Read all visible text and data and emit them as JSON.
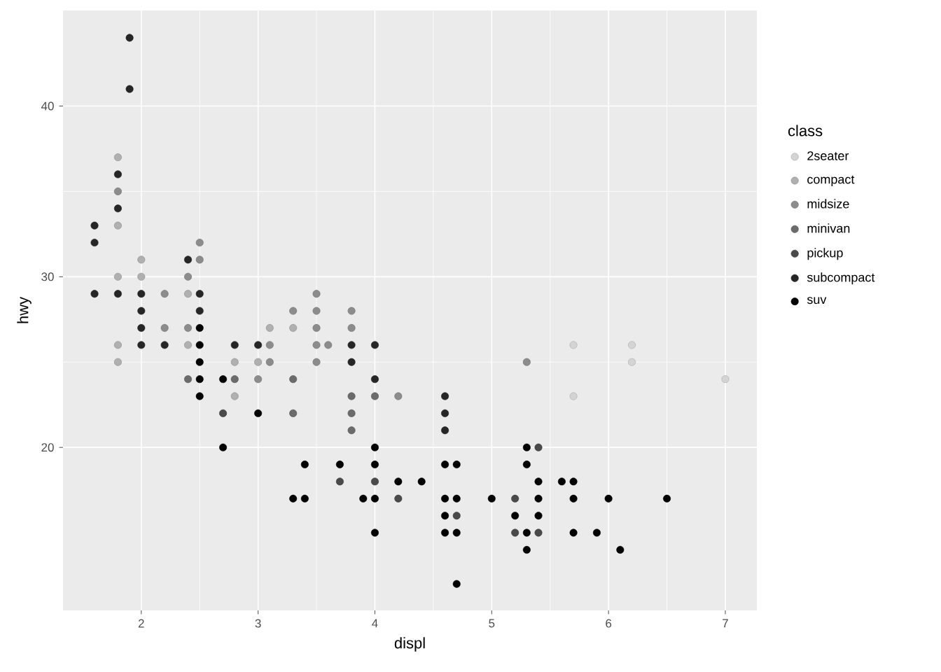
{
  "chart_data": {
    "type": "scatter",
    "xlabel": "displ",
    "ylabel": "hwy",
    "legend_title": "class",
    "xlim": [
      1.33,
      7.27
    ],
    "ylim": [
      10.45,
      45.6
    ],
    "xticks": [
      2,
      3,
      4,
      5,
      6,
      7
    ],
    "yticks": [
      20,
      30,
      40
    ],
    "grid": true,
    "legend": "right",
    "marker": "circle",
    "series": [
      {
        "name": "2seater",
        "color": "#d4d4d4",
        "x": [
          5.7,
          5.7,
          6.2,
          6.2,
          7.0
        ],
        "values": [
          26,
          23,
          26,
          25,
          24
        ]
      },
      {
        "name": "compact",
        "color": "#b0b0b0",
        "x": [
          1.8,
          1.8,
          1.8,
          1.8,
          1.8,
          2.0,
          2.0,
          2.4,
          2.4,
          2.8,
          2.8,
          3.0,
          3.1,
          3.3
        ],
        "values": [
          37,
          33,
          30,
          26,
          25,
          31,
          30,
          29,
          26,
          25,
          23,
          25,
          27,
          27
        ]
      },
      {
        "name": "midsize",
        "color": "#8c8c8c",
        "x": [
          1.8,
          2.2,
          2.2,
          2.4,
          2.4,
          2.5,
          2.5,
          3.0,
          3.1,
          3.1,
          3.3,
          3.5,
          3.5,
          3.5,
          3.5,
          3.5,
          3.6,
          3.8,
          3.8,
          4.2,
          5.3
        ],
        "values": [
          35,
          29,
          27,
          30,
          27,
          32,
          31,
          24,
          26,
          25,
          28,
          29,
          28,
          27,
          26,
          25,
          26,
          28,
          27,
          23,
          25
        ]
      },
      {
        "name": "minivan",
        "color": "#6b6b6b",
        "x": [
          2.4,
          2.8,
          3.3,
          3.3,
          3.8,
          3.8,
          3.8,
          4.0
        ],
        "values": [
          24,
          24,
          24,
          22,
          23,
          22,
          21,
          23
        ]
      },
      {
        "name": "pickup",
        "color": "#4a4a4a",
        "x": [
          2.7,
          3.7,
          4.0,
          4.2,
          4.7,
          5.2,
          5.2,
          5.4,
          5.4
        ],
        "values": [
          22,
          18,
          18,
          17,
          16,
          17,
          15,
          20,
          15
        ]
      },
      {
        "name": "subcompact",
        "color": "#262626",
        "x": [
          1.6,
          1.6,
          1.6,
          1.8,
          1.8,
          1.8,
          1.9,
          1.9,
          2.0,
          2.0,
          2.0,
          2.0,
          2.2,
          2.4,
          2.5,
          2.5,
          2.8,
          3.0,
          3.8,
          3.8,
          4.0,
          4.0,
          4.6,
          4.6,
          4.6
        ],
        "values": [
          33,
          32,
          29,
          36,
          34,
          29,
          44,
          41,
          29,
          28,
          27,
          26,
          26,
          31,
          29,
          28,
          26,
          26,
          26,
          25,
          26,
          24,
          23,
          22,
          21
        ]
      },
      {
        "name": "suv",
        "color": "#000000",
        "x": [
          2.5,
          2.5,
          2.5,
          2.5,
          2.5,
          2.7,
          2.7,
          3.0,
          3.3,
          3.4,
          3.4,
          3.7,
          3.9,
          4.0,
          4.0,
          4.0,
          4.0,
          4.2,
          4.4,
          4.6,
          4.6,
          4.6,
          4.6,
          4.7,
          4.7,
          4.7,
          4.7,
          5.0,
          5.2,
          5.3,
          5.3,
          5.3,
          5.3,
          5.4,
          5.4,
          5.4,
          5.6,
          5.7,
          5.7,
          5.7,
          5.9,
          6.0,
          6.1,
          6.5
        ],
        "values": [
          27,
          26,
          25,
          24,
          23,
          24,
          20,
          22,
          17,
          19,
          17,
          19,
          17,
          20,
          19,
          17,
          15,
          18,
          18,
          19,
          17,
          16,
          15,
          19,
          17,
          15,
          12,
          17,
          16,
          20,
          19,
          15,
          14,
          18,
          17,
          16,
          18,
          18,
          17,
          15,
          15,
          17,
          14,
          17
        ]
      }
    ]
  }
}
